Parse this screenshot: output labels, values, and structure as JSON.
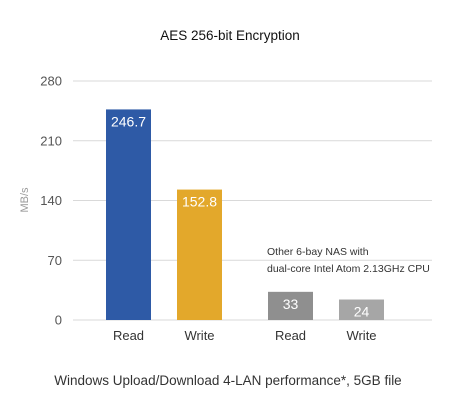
{
  "chart_data": {
    "type": "bar",
    "title": "AES 256-bit Encryption",
    "ylabel": "MB/s",
    "xlabel": "",
    "ylim": [
      0,
      280
    ],
    "yticks": [
      0,
      70,
      140,
      210,
      280
    ],
    "grid": true,
    "categories": [
      "Read",
      "Write",
      "Read",
      "Write"
    ],
    "values": [
      246.7,
      152.8,
      33,
      24
    ],
    "value_labels": [
      "246.7",
      "152.8",
      "33",
      "24"
    ],
    "colors": [
      "#2e5aa6",
      "#e3a82b",
      "#8f8f8f",
      "#a6a6a6"
    ],
    "groups": [
      {
        "bars": [
          0,
          1
        ],
        "label": ""
      },
      {
        "bars": [
          2,
          3
        ],
        "label": "Other 6-bay NAS with dual-core Intel Atom 2.13GHz CPU"
      }
    ],
    "annotation_lines": [
      "Other 6-bay NAS with",
      "dual-core Intel Atom 2.13GHz CPU"
    ],
    "caption": "Windows Upload/Download 4-LAN performance*, 5GB file"
  }
}
